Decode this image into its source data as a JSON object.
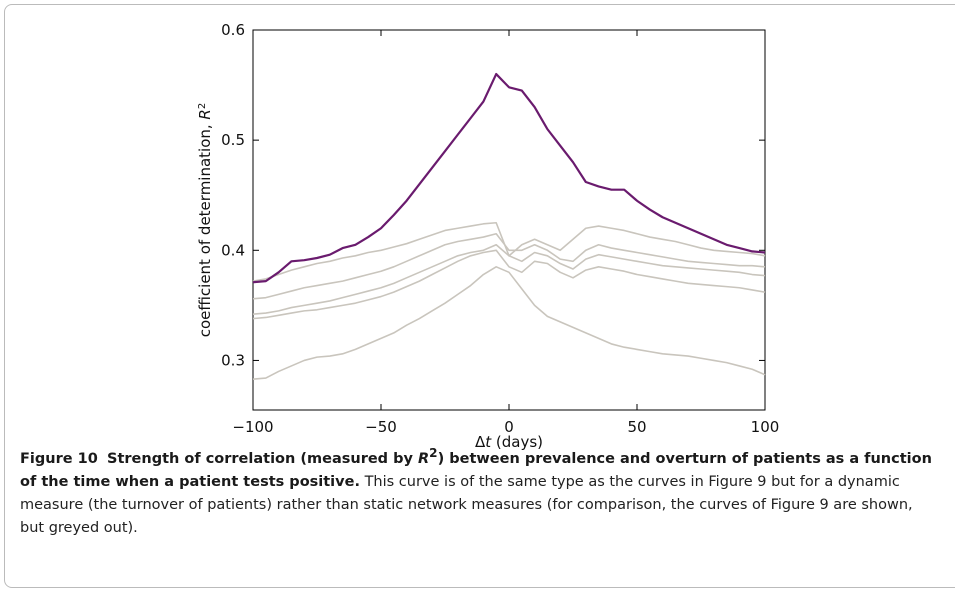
{
  "chart_data": {
    "type": "line",
    "ylabel": [
      "coefficient of determination, ",
      "R",
      "2"
    ],
    "xlabel": [
      "Δ",
      "t",
      " (days)"
    ],
    "x": [
      -100,
      -95,
      -90,
      -85,
      -80,
      -75,
      -70,
      -65,
      -60,
      -55,
      -50,
      -45,
      -40,
      -35,
      -30,
      -25,
      -20,
      -15,
      -10,
      -5,
      0,
      5,
      10,
      15,
      20,
      25,
      30,
      35,
      40,
      45,
      50,
      55,
      60,
      65,
      70,
      75,
      80,
      85,
      90,
      95,
      100
    ],
    "xlim": [
      -100,
      100
    ],
    "xticks": [
      {
        "value": -100,
        "label": "−100"
      },
      {
        "value": -50,
        "label": "−50"
      },
      0,
      50,
      100
    ],
    "ylim": [
      0.255,
      0.6
    ],
    "yticks": [
      0.3,
      0.4,
      0.5,
      0.6
    ],
    "series": [
      {
        "color": "#c9c5bd",
        "values": [
          0.372,
          0.374,
          0.378,
          0.382,
          0.385,
          0.388,
          0.39,
          0.393,
          0.395,
          0.398,
          0.4,
          0.403,
          0.406,
          0.41,
          0.414,
          0.418,
          0.42,
          0.422,
          0.424,
          0.425,
          0.395,
          0.405,
          0.41,
          0.405,
          0.4,
          0.41,
          0.42,
          0.422,
          0.42,
          0.418,
          0.415,
          0.412,
          0.41,
          0.408,
          0.405,
          0.402,
          0.4,
          0.399,
          0.398,
          0.397,
          0.395
        ]
      },
      {
        "color": "#c9c5bd",
        "values": [
          0.356,
          0.357,
          0.36,
          0.363,
          0.366,
          0.368,
          0.37,
          0.372,
          0.375,
          0.378,
          0.381,
          0.385,
          0.39,
          0.395,
          0.4,
          0.405,
          0.408,
          0.41,
          0.412,
          0.415,
          0.4,
          0.4,
          0.405,
          0.4,
          0.392,
          0.39,
          0.4,
          0.405,
          0.402,
          0.4,
          0.398,
          0.396,
          0.394,
          0.392,
          0.39,
          0.389,
          0.388,
          0.387,
          0.386,
          0.386,
          0.385
        ]
      },
      {
        "color": "#c9c5bd",
        "values": [
          0.342,
          0.343,
          0.345,
          0.348,
          0.35,
          0.352,
          0.354,
          0.357,
          0.36,
          0.363,
          0.366,
          0.37,
          0.375,
          0.38,
          0.385,
          0.39,
          0.395,
          0.398,
          0.4,
          0.405,
          0.395,
          0.39,
          0.398,
          0.395,
          0.388,
          0.383,
          0.392,
          0.396,
          0.394,
          0.392,
          0.39,
          0.388,
          0.386,
          0.385,
          0.384,
          0.383,
          0.382,
          0.381,
          0.38,
          0.378,
          0.377
        ]
      },
      {
        "color": "#c9c5bd",
        "values": [
          0.338,
          0.339,
          0.341,
          0.343,
          0.345,
          0.346,
          0.348,
          0.35,
          0.352,
          0.355,
          0.358,
          0.362,
          0.367,
          0.372,
          0.378,
          0.384,
          0.39,
          0.395,
          0.398,
          0.4,
          0.385,
          0.38,
          0.39,
          0.388,
          0.38,
          0.375,
          0.382,
          0.385,
          0.383,
          0.381,
          0.378,
          0.376,
          0.374,
          0.372,
          0.37,
          0.369,
          0.368,
          0.367,
          0.366,
          0.364,
          0.362
        ]
      },
      {
        "color": "#c9c5bd",
        "values": [
          0.283,
          0.284,
          0.29,
          0.295,
          0.3,
          0.303,
          0.304,
          0.306,
          0.31,
          0.315,
          0.32,
          0.325,
          0.332,
          0.338,
          0.345,
          0.352,
          0.36,
          0.368,
          0.378,
          0.385,
          0.38,
          0.365,
          0.35,
          0.34,
          0.335,
          0.33,
          0.325,
          0.32,
          0.315,
          0.312,
          0.31,
          0.308,
          0.306,
          0.305,
          0.304,
          0.302,
          0.3,
          0.298,
          0.295,
          0.292,
          0.287
        ]
      },
      {
        "color": "#6a1b6e",
        "values": [
          0.371,
          0.372,
          0.38,
          0.39,
          0.391,
          0.393,
          0.396,
          0.402,
          0.405,
          0.412,
          0.42,
          0.432,
          0.445,
          0.46,
          0.475,
          0.49,
          0.505,
          0.52,
          0.535,
          0.56,
          0.548,
          0.545,
          0.53,
          0.51,
          0.495,
          0.48,
          0.462,
          0.458,
          0.455,
          0.455,
          0.445,
          0.437,
          0.43,
          0.425,
          0.42,
          0.415,
          0.41,
          0.405,
          0.402,
          0.399,
          0.398
        ]
      }
    ]
  },
  "caption": {
    "label": "Figure 10",
    "title": [
      "Strength of correlation (measured by ",
      "R",
      "2",
      ") between prevalence and overturn of patients as a function of the time when a patient tests positive."
    ],
    "text": "This curve is of the same type as the curves in Figure 9 but for a dynamic measure (the turnover of patients) rather than static network measures (for comparison, the curves of Figure 9 are shown, but greyed out)."
  }
}
